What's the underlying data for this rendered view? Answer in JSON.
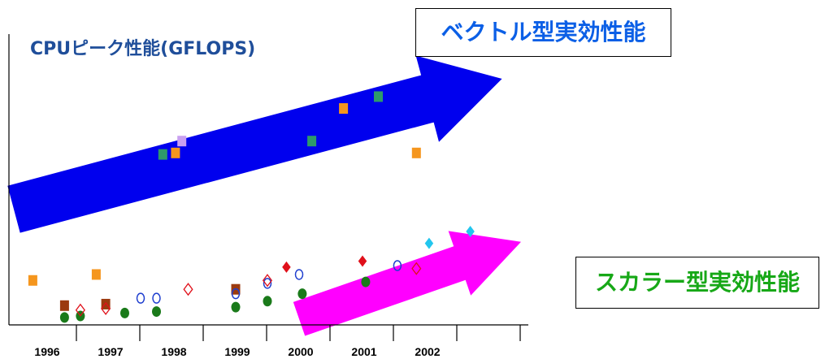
{
  "chart_data": {
    "type": "scatter",
    "title": "CPUピーク性能(GFLOPS)",
    "x_ticks": [
      "1996",
      "1997",
      "1998",
      "1999",
      "2000",
      "2001",
      "2002"
    ],
    "annotations": {
      "vector": "ベクトル型実効性能",
      "scalar": "スカラー型実効性能"
    },
    "trend_arrows": [
      {
        "name": "vector",
        "color": "#0000ee",
        "from": [
          1995.5,
          3.9
        ],
        "to": [
          2003.2,
          8.3
        ]
      },
      {
        "name": "scalar",
        "color": "#ff00ff",
        "from": [
          2000.0,
          0.2
        ],
        "to": [
          2003.5,
          2.8
        ]
      }
    ],
    "markers": [
      {
        "shape": "square",
        "fill": "#f5961e",
        "stroke": "none",
        "x": 1995.8,
        "y": 1.5
      },
      {
        "shape": "square",
        "fill": "#f5961e",
        "stroke": "none",
        "x": 1996.8,
        "y": 1.7
      },
      {
        "shape": "square",
        "fill": "#f5961e",
        "stroke": "none",
        "x": 1998.05,
        "y": 5.8
      },
      {
        "shape": "square",
        "fill": "#f5961e",
        "stroke": "none",
        "x": 2000.7,
        "y": 7.3
      },
      {
        "shape": "square",
        "fill": "#f5961e",
        "stroke": "none",
        "x": 2001.85,
        "y": 5.8
      },
      {
        "shape": "square",
        "fill": "#2e9a6a",
        "stroke": "none",
        "x": 1997.85,
        "y": 5.75
      },
      {
        "shape": "square",
        "fill": "#2e9a6a",
        "stroke": "none",
        "x": 2000.2,
        "y": 6.2
      },
      {
        "shape": "square",
        "fill": "#2e9a6a",
        "stroke": "none",
        "x": 2001.25,
        "y": 7.7
      },
      {
        "shape": "square",
        "fill": "#c9a0f0",
        "stroke": "none",
        "x": 1998.15,
        "y": 6.2
      },
      {
        "shape": "square",
        "fill": "#9b3a0f",
        "stroke": "none",
        "x": 1996.3,
        "y": 0.65
      },
      {
        "shape": "square",
        "fill": "#9b3a0f",
        "stroke": "none",
        "x": 1996.95,
        "y": 0.7
      },
      {
        "shape": "square",
        "fill": "#9b3a0f",
        "stroke": "none",
        "x": 1999.0,
        "y": 1.2
      },
      {
        "shape": "circle",
        "fill": "#1a7a1a",
        "stroke": "none",
        "x": 1996.3,
        "y": 0.25
      },
      {
        "shape": "circle",
        "fill": "#1a7a1a",
        "stroke": "none",
        "x": 1996.55,
        "y": 0.3
      },
      {
        "shape": "circle",
        "fill": "#1a7a1a",
        "stroke": "none",
        "x": 1997.25,
        "y": 0.4
      },
      {
        "shape": "circle",
        "fill": "#1a7a1a",
        "stroke": "none",
        "x": 1997.75,
        "y": 0.45
      },
      {
        "shape": "circle",
        "fill": "#1a7a1a",
        "stroke": "none",
        "x": 1999.0,
        "y": 0.6
      },
      {
        "shape": "circle",
        "fill": "#1a7a1a",
        "stroke": "none",
        "x": 1999.5,
        "y": 0.8
      },
      {
        "shape": "circle",
        "fill": "#1a7a1a",
        "stroke": "none",
        "x": 2000.05,
        "y": 1.05
      },
      {
        "shape": "circle",
        "fill": "#1a7a1a",
        "stroke": "none",
        "x": 2001.05,
        "y": 1.45
      },
      {
        "shape": "ring",
        "fill": "none",
        "stroke": "#1f3fcf",
        "x": 1997.5,
        "y": 0.9
      },
      {
        "shape": "ring",
        "fill": "none",
        "stroke": "#1f3fcf",
        "x": 1997.75,
        "y": 0.9
      },
      {
        "shape": "ring",
        "fill": "none",
        "stroke": "#1f3fcf",
        "x": 1999.0,
        "y": 1.05
      },
      {
        "shape": "ring",
        "fill": "none",
        "stroke": "#1f3fcf",
        "x": 1999.5,
        "y": 1.4
      },
      {
        "shape": "ring",
        "fill": "none",
        "stroke": "#1f3fcf",
        "x": 2000.0,
        "y": 1.7
      },
      {
        "shape": "ring",
        "fill": "none",
        "stroke": "#1f3fcf",
        "x": 2001.55,
        "y": 2.0
      },
      {
        "shape": "diamond-open",
        "fill": "none",
        "stroke": "#e0101a",
        "x": 1996.55,
        "y": 0.5
      },
      {
        "shape": "diamond-open",
        "fill": "none",
        "stroke": "#e0101a",
        "x": 1996.95,
        "y": 0.55
      },
      {
        "shape": "diamond-open",
        "fill": "none",
        "stroke": "#e0101a",
        "x": 1998.25,
        "y": 1.2
      },
      {
        "shape": "diamond-open",
        "fill": "none",
        "stroke": "#e0101a",
        "x": 1999.5,
        "y": 1.5
      },
      {
        "shape": "diamond-open",
        "fill": "none",
        "stroke": "#e0101a",
        "x": 2001.85,
        "y": 1.9
      },
      {
        "shape": "diamond",
        "fill": "#e0101a",
        "stroke": "none",
        "x": 1999.8,
        "y": 1.95
      },
      {
        "shape": "diamond",
        "fill": "#e0101a",
        "stroke": "none",
        "x": 2001.0,
        "y": 2.15
      },
      {
        "shape": "diamond",
        "fill": "#22c6ee",
        "stroke": "none",
        "x": 2002.05,
        "y": 2.75
      },
      {
        "shape": "diamond",
        "fill": "#22c6ee",
        "stroke": "none",
        "x": 2002.7,
        "y": 3.15
      }
    ]
  }
}
